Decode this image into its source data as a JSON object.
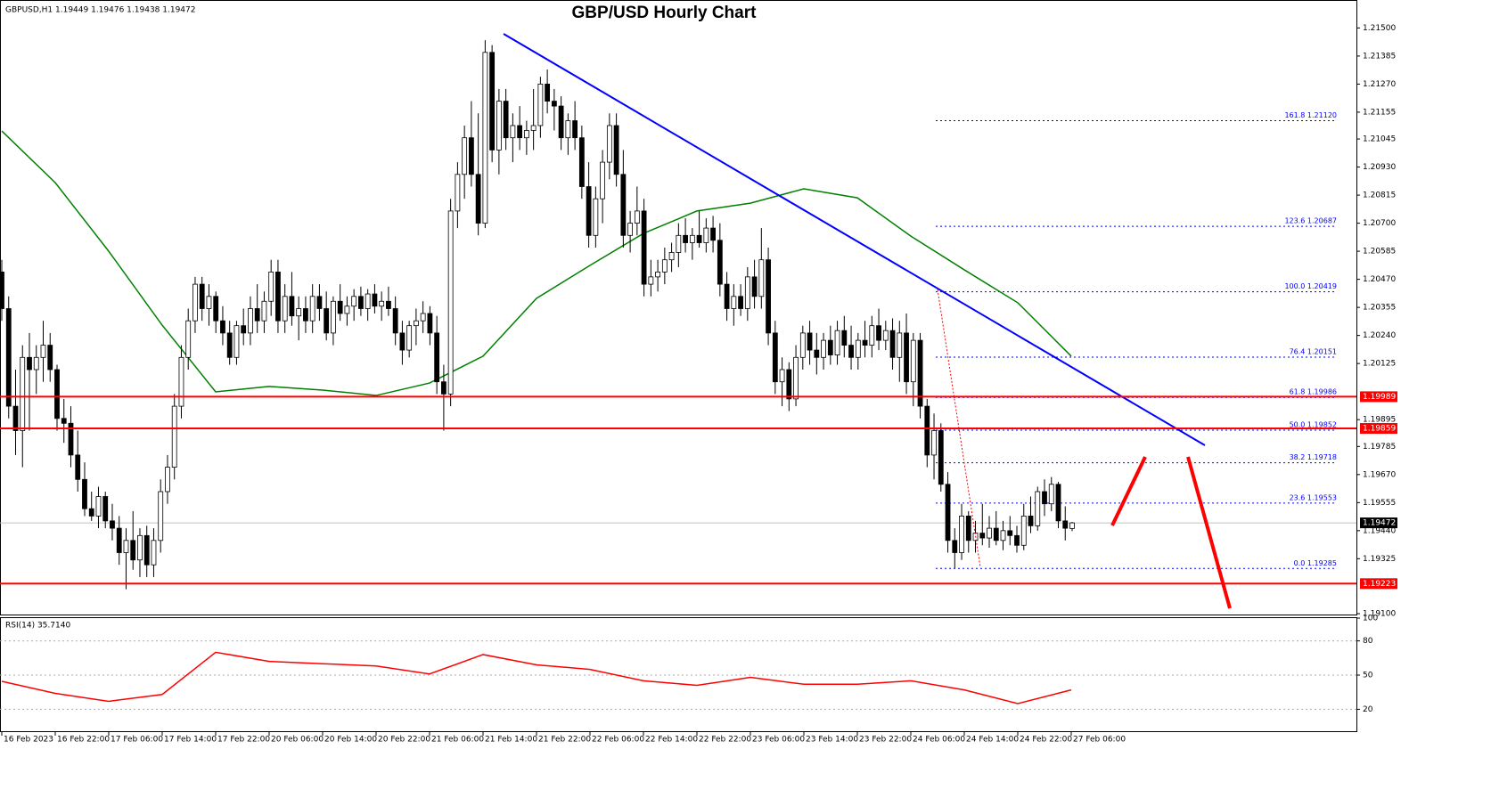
{
  "chart_data": {
    "type": "candlestick",
    "title": "GBP/USD Hourly Chart",
    "header": "GBPUSD,H1  1.19449 1.19476 1.19438 1.19472",
    "categories": [
      "16 Feb 2023",
      "16 Feb 22:00",
      "17 Feb 06:00",
      "17 Feb 14:00",
      "17 Feb 22:00",
      "20 Feb 06:00",
      "20 Feb 14:00",
      "20 Feb 22:00",
      "21 Feb 06:00",
      "21 Feb 14:00",
      "21 Feb 22:00",
      "22 Feb 06:00",
      "22 Feb 14:00",
      "22 Feb 22:00",
      "23 Feb 06:00",
      "23 Feb 14:00",
      "23 Feb 22:00",
      "24 Feb 06:00",
      "24 Feb 14:00",
      "24 Feb 22:00",
      "27 Feb 06:00"
    ],
    "ohlc": [
      [
        1.205,
        1.2055,
        1.203,
        1.2035
      ],
      [
        1.2035,
        1.204,
        1.199,
        1.1995
      ],
      [
        1.1995,
        1.201,
        1.1975,
        1.1985
      ],
      [
        1.1985,
        1.202,
        1.197,
        1.2015
      ],
      [
        1.2015,
        1.2025,
        1.1985,
        1.201
      ],
      [
        1.201,
        1.202,
        1.2,
        1.2015
      ],
      [
        1.2015,
        1.203,
        1.2005,
        1.202
      ],
      [
        1.202,
        1.2025,
        1.2005,
        1.201
      ],
      [
        1.201,
        1.2012,
        1.1985,
        1.199
      ],
      [
        1.199,
        1.1998,
        1.198,
        1.1988
      ],
      [
        1.1988,
        1.1995,
        1.197,
        1.1975
      ],
      [
        1.1975,
        1.1985,
        1.196,
        1.1965
      ],
      [
        1.1965,
        1.1972,
        1.195,
        1.1953
      ],
      [
        1.1953,
        1.196,
        1.1948,
        1.195
      ],
      [
        1.195,
        1.1962,
        1.1945,
        1.1958
      ],
      [
        1.1958,
        1.196,
        1.1945,
        1.1948
      ],
      [
        1.1948,
        1.1955,
        1.194,
        1.1945
      ],
      [
        1.1945,
        1.195,
        1.193,
        1.1935
      ],
      [
        1.1935,
        1.1945,
        1.192,
        1.194
      ],
      [
        1.194,
        1.1952,
        1.1928,
        1.1932
      ],
      [
        1.1932,
        1.1945,
        1.1925,
        1.1942
      ],
      [
        1.1942,
        1.1946,
        1.1925,
        1.193
      ],
      [
        1.193,
        1.1945,
        1.1925,
        1.194
      ],
      [
        1.194,
        1.1965,
        1.1935,
        1.196
      ],
      [
        1.196,
        1.1975,
        1.1955,
        1.197
      ],
      [
        1.197,
        1.2,
        1.1965,
        1.1995
      ],
      [
        1.1995,
        1.202,
        1.199,
        1.2015
      ],
      [
        1.2015,
        1.2035,
        1.201,
        1.203
      ],
      [
        1.203,
        1.2048,
        1.2025,
        1.2045
      ],
      [
        1.2045,
        1.2048,
        1.203,
        1.2035
      ],
      [
        1.2035,
        1.2045,
        1.2028,
        1.204
      ],
      [
        1.204,
        1.2042,
        1.2025,
        1.203
      ],
      [
        1.203,
        1.2036,
        1.202,
        1.2025
      ],
      [
        1.2025,
        1.203,
        1.2012,
        1.2015
      ],
      [
        1.2015,
        1.203,
        1.2012,
        1.2028
      ],
      [
        1.2028,
        1.2035,
        1.202,
        1.2025
      ],
      [
        1.2025,
        1.204,
        1.202,
        1.2035
      ],
      [
        1.2035,
        1.2045,
        1.2025,
        1.203
      ],
      [
        1.203,
        1.2042,
        1.2025,
        1.2038
      ],
      [
        1.2038,
        1.2055,
        1.2032,
        1.205
      ],
      [
        1.205,
        1.2055,
        1.2025,
        1.203
      ],
      [
        1.203,
        1.2045,
        1.2025,
        1.204
      ],
      [
        1.204,
        1.205,
        1.2028,
        1.2032
      ],
      [
        1.2032,
        1.204,
        1.2022,
        1.2035
      ],
      [
        1.2035,
        1.204,
        1.2025,
        1.203
      ],
      [
        1.203,
        1.2045,
        1.2025,
        1.204
      ],
      [
        1.204,
        1.2045,
        1.203,
        1.2035
      ],
      [
        1.2035,
        1.2042,
        1.2022,
        1.2025
      ],
      [
        1.2025,
        1.204,
        1.202,
        1.2038
      ],
      [
        1.2038,
        1.2045,
        1.203,
        1.2033
      ],
      [
        1.2033,
        1.204,
        1.2028,
        1.2036
      ],
      [
        1.2036,
        1.2043,
        1.203,
        1.204
      ],
      [
        1.204,
        1.2044,
        1.2032,
        1.2035
      ],
      [
        1.2035,
        1.2043,
        1.203,
        1.2041
      ],
      [
        1.2041,
        1.2045,
        1.2033,
        1.2036
      ],
      [
        1.2036,
        1.2042,
        1.203,
        1.2038
      ],
      [
        1.2038,
        1.2044,
        1.2032,
        1.2035
      ],
      [
        1.2035,
        1.204,
        1.202,
        1.2025
      ],
      [
        1.2025,
        1.203,
        1.2012,
        1.2018
      ],
      [
        1.2018,
        1.203,
        1.2015,
        1.2028
      ],
      [
        1.2028,
        1.2035,
        1.202,
        1.203
      ],
      [
        1.203,
        1.2038,
        1.2025,
        1.2033
      ],
      [
        1.2033,
        1.2036,
        1.202,
        1.2025
      ],
      [
        1.2025,
        1.2032,
        1.2,
        1.2005
      ],
      [
        1.2005,
        1.2012,
        1.1985,
        1.2
      ],
      [
        1.2,
        1.208,
        1.1995,
        1.2075
      ],
      [
        1.2075,
        1.2095,
        1.2068,
        1.209
      ],
      [
        1.209,
        1.211,
        1.208,
        1.2105
      ],
      [
        1.2105,
        1.212,
        1.2085,
        1.209
      ],
      [
        1.209,
        1.2115,
        1.2065,
        1.207
      ],
      [
        1.207,
        1.2145,
        1.2068,
        1.214
      ],
      [
        1.214,
        1.2143,
        1.2095,
        1.21
      ],
      [
        1.21,
        1.2125,
        1.209,
        1.212
      ],
      [
        1.212,
        1.2125,
        1.21,
        1.2105
      ],
      [
        1.2105,
        1.2115,
        1.2095,
        1.211
      ],
      [
        1.211,
        1.2118,
        1.21,
        1.2105
      ],
      [
        1.2105,
        1.2112,
        1.2098,
        1.2108
      ],
      [
        1.2108,
        1.2125,
        1.21,
        1.211
      ],
      [
        1.211,
        1.213,
        1.2105,
        1.2127
      ],
      [
        1.2127,
        1.2133,
        1.2115,
        1.212
      ],
      [
        1.212,
        1.2125,
        1.2108,
        1.2118
      ],
      [
        1.2118,
        1.2122,
        1.21,
        1.2105
      ],
      [
        1.2105,
        1.2115,
        1.2098,
        1.2112
      ],
      [
        1.2112,
        1.212,
        1.21,
        1.2105
      ],
      [
        1.2105,
        1.211,
        1.208,
        1.2085
      ],
      [
        1.2085,
        1.2095,
        1.206,
        1.2065
      ],
      [
        1.2065,
        1.2085,
        1.206,
        1.208
      ],
      [
        1.208,
        1.21,
        1.207,
        1.2095
      ],
      [
        1.2095,
        1.2115,
        1.2088,
        1.211
      ],
      [
        1.211,
        1.2115,
        1.2085,
        1.209
      ],
      [
        1.209,
        1.21,
        1.206,
        1.2065
      ],
      [
        1.2065,
        1.2075,
        1.2058,
        1.207
      ],
      [
        1.207,
        1.2085,
        1.2065,
        1.2075
      ],
      [
        1.2075,
        1.208,
        1.204,
        1.2045
      ],
      [
        1.2045,
        1.2055,
        1.204,
        1.2048
      ],
      [
        1.2048,
        1.2055,
        1.2042,
        1.205
      ],
      [
        1.205,
        1.206,
        1.2045,
        1.2055
      ],
      [
        1.2055,
        1.2062,
        1.205,
        1.2058
      ],
      [
        1.2058,
        1.207,
        1.2052,
        1.2065
      ],
      [
        1.2065,
        1.2072,
        1.2058,
        1.2062
      ],
      [
        1.2062,
        1.2068,
        1.2055,
        1.2065
      ],
      [
        1.2065,
        1.2075,
        1.206,
        1.2062
      ],
      [
        1.2062,
        1.2072,
        1.2058,
        1.2068
      ],
      [
        1.2068,
        1.2073,
        1.2058,
        1.2063
      ],
      [
        1.2063,
        1.207,
        1.204,
        1.2045
      ],
      [
        1.2045,
        1.205,
        1.203,
        1.2035
      ],
      [
        1.2035,
        1.2045,
        1.2028,
        1.204
      ],
      [
        1.204,
        1.2045,
        1.2032,
        1.2035
      ],
      [
        1.2035,
        1.2052,
        1.203,
        1.2048
      ],
      [
        1.2048,
        1.2055,
        1.2035,
        1.204
      ],
      [
        1.204,
        1.2068,
        1.2035,
        1.2055
      ],
      [
        1.2055,
        1.206,
        1.202,
        1.2025
      ],
      [
        1.2025,
        1.203,
        1.2,
        1.2005
      ],
      [
        1.2005,
        1.2015,
        1.1995,
        1.201
      ],
      [
        1.201,
        1.2013,
        1.1993,
        1.1998
      ],
      [
        1.1998,
        1.202,
        1.1995,
        1.2015
      ],
      [
        1.2015,
        1.2028,
        1.201,
        1.2025
      ],
      [
        1.2025,
        1.203,
        1.2012,
        1.2018
      ],
      [
        1.2018,
        1.2025,
        1.2008,
        1.2015
      ],
      [
        1.2015,
        1.2025,
        1.201,
        1.2022
      ],
      [
        1.2022,
        1.2028,
        1.2012,
        1.2016
      ],
      [
        1.2016,
        1.203,
        1.2012,
        1.2026
      ],
      [
        1.2026,
        1.2032,
        1.2015,
        1.202
      ],
      [
        1.202,
        1.2028,
        1.201,
        1.2015
      ],
      [
        1.2015,
        1.2025,
        1.201,
        1.2022
      ],
      [
        1.2022,
        1.203,
        1.2015,
        1.202
      ],
      [
        1.202,
        1.2032,
        1.2015,
        1.2028
      ],
      [
        1.2028,
        1.2035,
        1.2018,
        1.2022
      ],
      [
        1.2022,
        1.203,
        1.2018,
        1.2026
      ],
      [
        1.2026,
        1.2031,
        1.201,
        1.2015
      ],
      [
        1.2015,
        1.203,
        1.2005,
        1.2025
      ],
      [
        1.2025,
        1.2033,
        1.2,
        1.2005
      ],
      [
        1.2005,
        1.2025,
        1.1995,
        1.2022
      ],
      [
        1.2022,
        1.2025,
        1.199,
        1.1995
      ],
      [
        1.1995,
        1.1998,
        1.197,
        1.1975
      ],
      [
        1.1975,
        1.1992,
        1.1965,
        1.1985
      ],
      [
        1.1985,
        1.1988,
        1.196,
        1.1963
      ],
      [
        1.1963,
        1.1968,
        1.1935,
        1.194
      ],
      [
        1.194,
        1.1945,
        1.19285,
        1.1935
      ],
      [
        1.1935,
        1.1955,
        1.1932,
        1.195
      ],
      [
        1.195,
        1.1952,
        1.1935,
        1.194
      ],
      [
        1.194,
        1.1948,
        1.1935,
        1.1943
      ],
      [
        1.1943,
        1.1955,
        1.1938,
        1.1941
      ],
      [
        1.1941,
        1.195,
        1.1937,
        1.1945
      ],
      [
        1.1945,
        1.1952,
        1.1938,
        1.194
      ],
      [
        1.194,
        1.1948,
        1.1936,
        1.1944
      ],
      [
        1.1944,
        1.195,
        1.1938,
        1.1942
      ],
      [
        1.1942,
        1.1946,
        1.1935,
        1.1938
      ],
      [
        1.1938,
        1.1955,
        1.1936,
        1.195
      ],
      [
        1.195,
        1.1958,
        1.1943,
        1.1946
      ],
      [
        1.1946,
        1.1962,
        1.1944,
        1.196
      ],
      [
        1.196,
        1.1965,
        1.195,
        1.1955
      ],
      [
        1.1955,
        1.1966,
        1.1952,
        1.1963
      ],
      [
        1.1963,
        1.1964,
        1.1945,
        1.1948
      ],
      [
        1.1948,
        1.1954,
        1.194,
        1.1945
      ],
      [
        1.19449,
        1.19476,
        1.19438,
        1.19472
      ]
    ],
    "ma": {
      "color": "#008000",
      "values": [
        1.21078,
        1.20866,
        1.20585,
        1.20282,
        1.20009,
        1.20031,
        1.20016,
        1.19994,
        1.20045,
        1.20155,
        1.20392,
        1.20527,
        1.20658,
        1.2075,
        1.20782,
        1.20841,
        1.20804,
        1.20647,
        1.20509,
        1.20374,
        1.20155
      ]
    },
    "ylim": [
      1.191,
      1.216
    ],
    "yticks": [
      {
        "value": 1.215,
        "label": "1.21500"
      },
      1.21385,
      {
        "value": 1.2127,
        "label": "1.21270"
      },
      1.21155,
      1.21045,
      {
        "value": 1.2093,
        "label": "1.20930"
      },
      1.20815,
      {
        "value": 1.207,
        "label": "1.20700"
      },
      1.20585,
      {
        "value": 1.2047,
        "label": "1.20470"
      },
      1.20355,
      {
        "value": 1.2024,
        "label": "1.20240"
      },
      1.20125,
      1.19895,
      1.19785,
      {
        "value": 1.1967,
        "label": "1.19670"
      },
      1.19555,
      {
        "value": 1.1944,
        "label": "1.19440"
      },
      1.19325,
      {
        "value": 1.191,
        "label": "1.19100"
      }
    ],
    "levels": [
      1.19989,
      1.19859,
      1.19223
    ],
    "level_color": "#ff0000",
    "current_price": 1.19472,
    "fib_levels": [
      {
        "value": 1.2112,
        "label": "161.8 1.21120"
      },
      {
        "value": 1.20687,
        "label": "123.6 1.20687"
      },
      {
        "value": 1.20419,
        "label": "100.0 1.20419"
      },
      {
        "value": 1.20151,
        "label": "76.4 1.20151"
      },
      {
        "value": 1.19986,
        "label": "61.8 1.19986"
      },
      {
        "value": 1.19852,
        "label": "50.0 1.19852"
      },
      {
        "value": 1.19718,
        "label": "38.2 1.19718"
      },
      {
        "value": 1.19553,
        "label": "23.6 1.19553"
      },
      {
        "value": 1.19285,
        "label": "0.0 1.19285"
      }
    ],
    "rsi": {
      "label": "RSI(14) 35.7140",
      "color": "#ff0000",
      "values": [
        44.5,
        34,
        27,
        33,
        70,
        62,
        60,
        58,
        51,
        68,
        59,
        55,
        45,
        41,
        48,
        42,
        42,
        45,
        37,
        25,
        37
      ],
      "ylim": [
        0,
        100
      ],
      "yticks": [
        20,
        50,
        80,
        100
      ]
    }
  }
}
